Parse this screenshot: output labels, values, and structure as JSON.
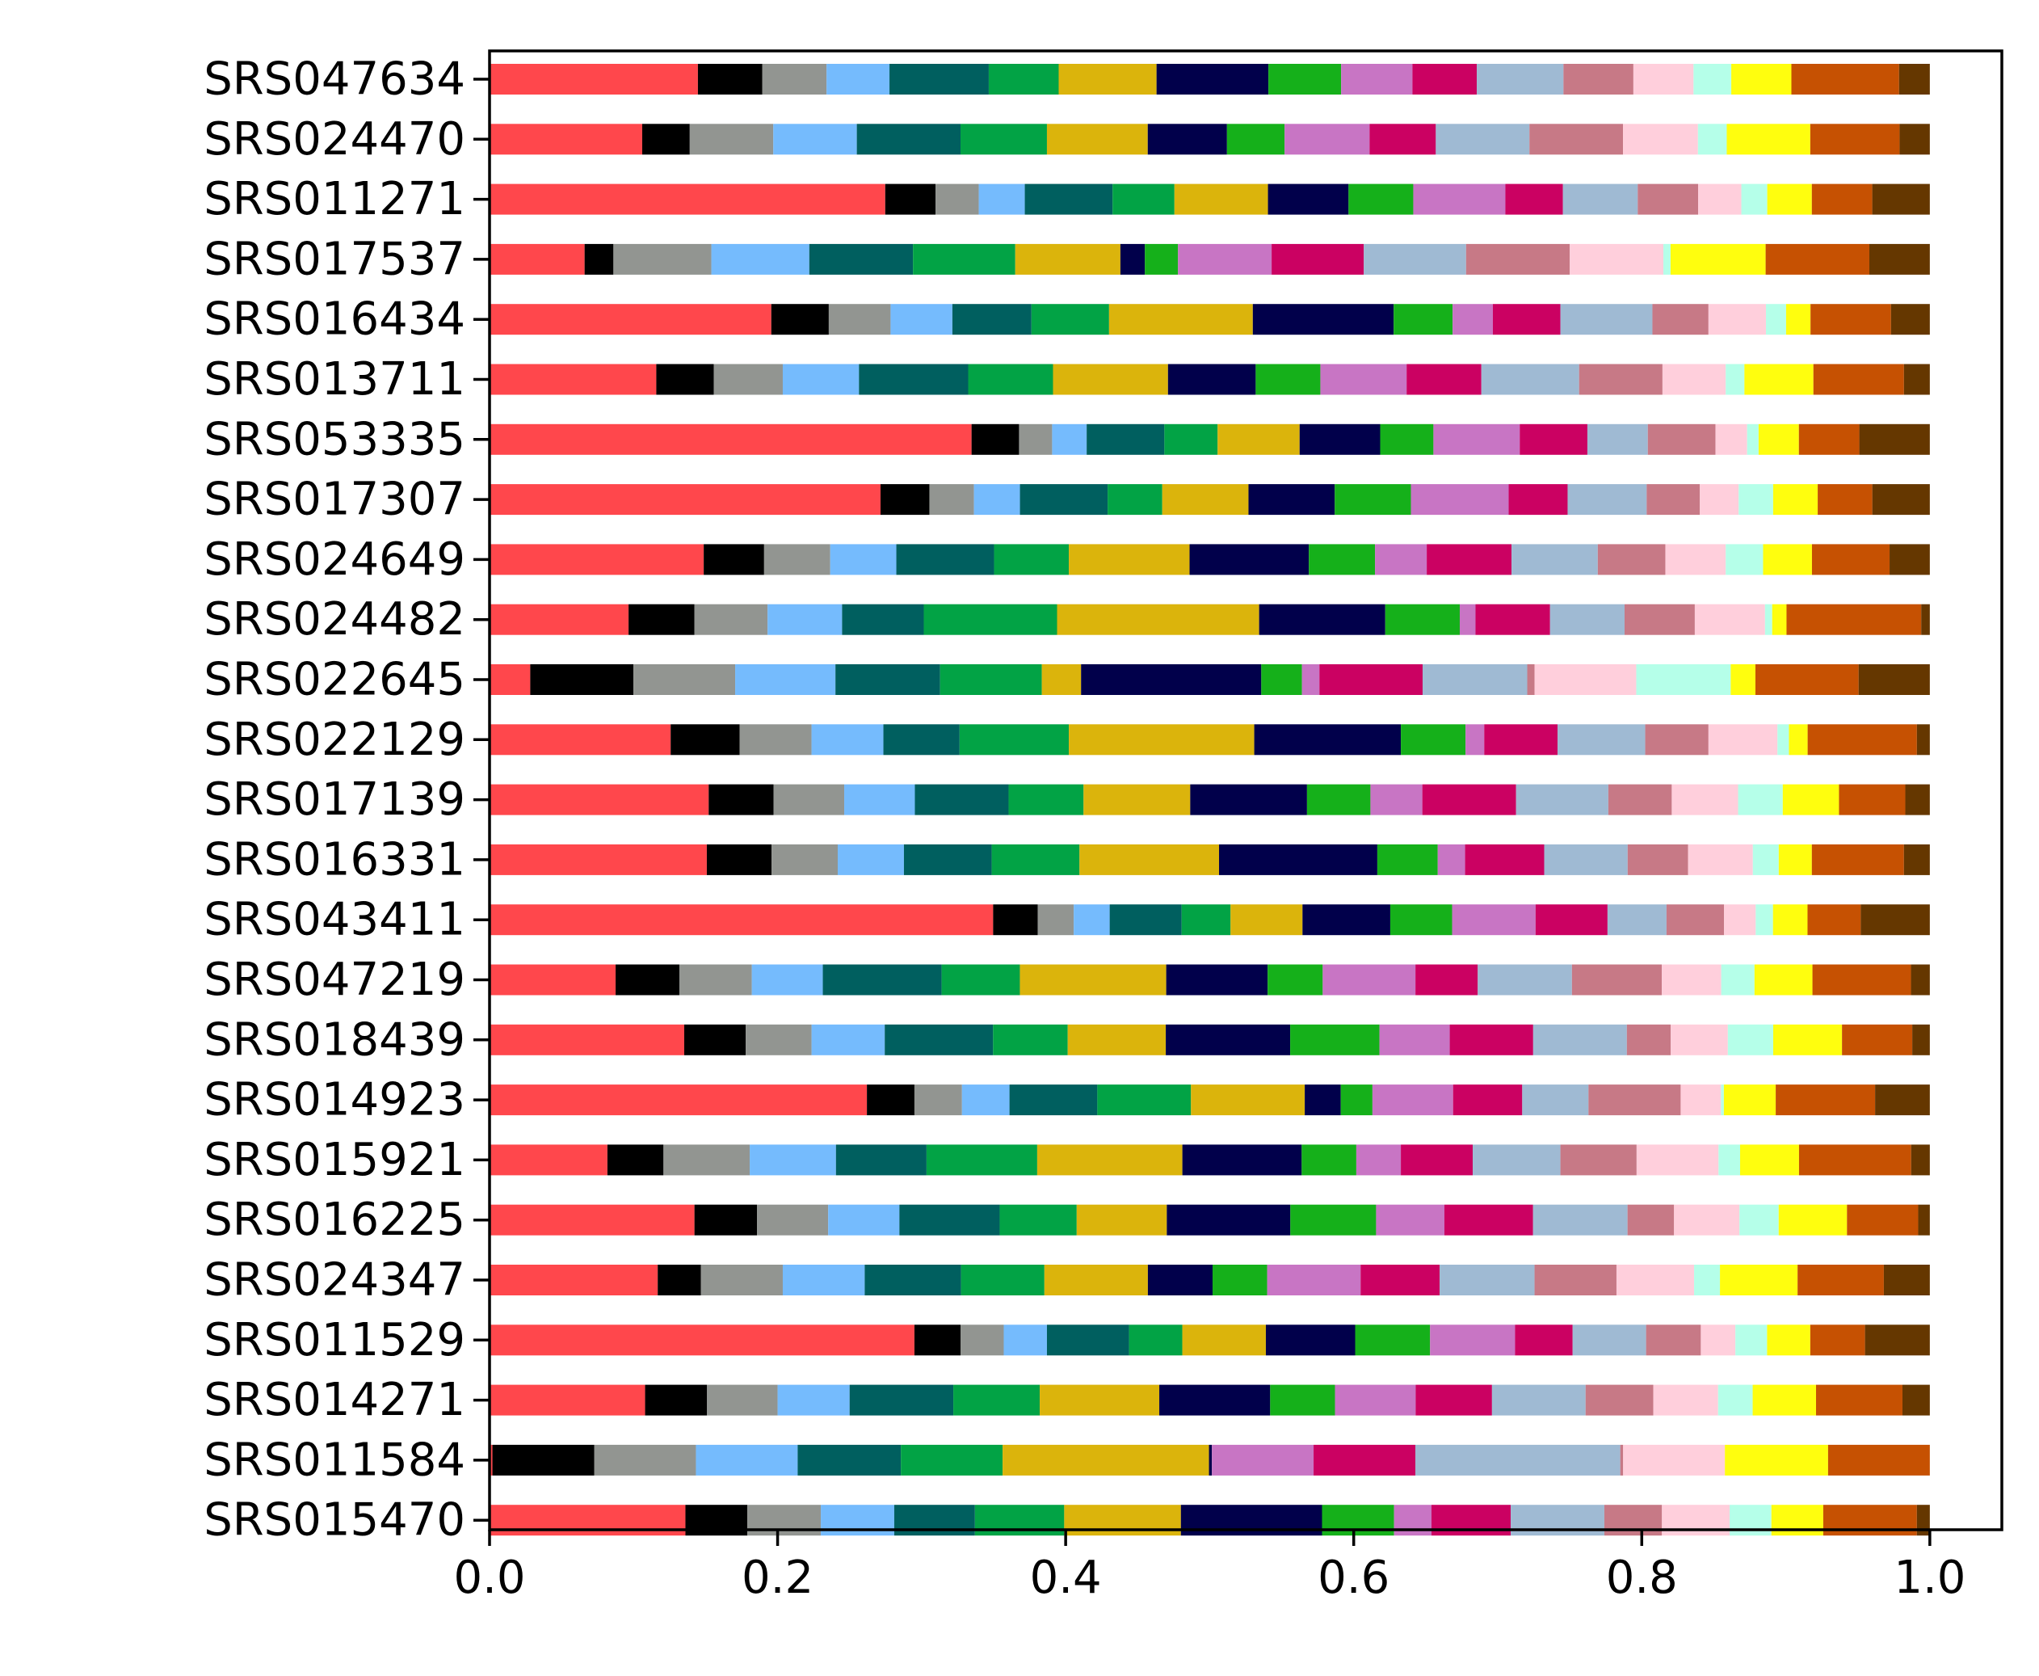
{
  "chart_data": {
    "type": "bar",
    "orientation": "horizontal",
    "stacked": true,
    "title": "",
    "xlabel": "",
    "ylabel": "",
    "xlim": [
      0.0,
      1.05
    ],
    "xticks": [
      0.0,
      0.2,
      0.4,
      0.6,
      0.8,
      1.0
    ],
    "xtick_labels": [
      "0.0",
      "0.2",
      "0.4",
      "0.6",
      "0.8",
      "1.0"
    ],
    "grid": false,
    "legend": "none",
    "colors": [
      "#ff474c",
      "#000000",
      "#929591",
      "#75bbfd",
      "#005f5f",
      "#02a345",
      "#dbb40c",
      "#01004b",
      "#15b01a",
      "#c875c4",
      "#cb0162",
      "#9fbad3",
      "#c77986",
      "#ffcfdc",
      "#b5ffe9",
      "#fffe0e",
      "#c65102",
      "#653700"
    ],
    "categories": [
      "SRS047634",
      "SRS024470",
      "SRS011271",
      "SRS017537",
      "SRS016434",
      "SRS013711",
      "SRS053335",
      "SRS017307",
      "SRS024649",
      "SRS024482",
      "SRS022645",
      "SRS022129",
      "SRS017139",
      "SRS016331",
      "SRS043411",
      "SRS047219",
      "SRS018439",
      "SRS014923",
      "SRS015921",
      "SRS016225",
      "SRS024347",
      "SRS011529",
      "SRS014271",
      "SRS011584",
      "SRS015470"
    ],
    "values": [
      [
        0.149,
        0.046,
        0.046,
        0.045,
        0.071,
        0.05,
        0.07,
        0.08,
        0.052,
        0.051,
        0.046,
        0.062,
        0.05,
        0.043,
        0.027,
        0.043,
        0.077,
        0.022
      ],
      [
        0.106,
        0.033,
        0.058,
        0.058,
        0.072,
        0.06,
        0.07,
        0.055,
        0.04,
        0.059,
        0.046,
        0.065,
        0.065,
        0.052,
        0.02,
        0.058,
        0.062,
        0.021
      ],
      [
        0.275,
        0.035,
        0.03,
        0.032,
        0.061,
        0.043,
        0.065,
        0.056,
        0.045,
        0.064,
        0.04,
        0.052,
        0.042,
        0.03,
        0.018,
        0.031,
        0.042,
        0.04
      ],
      [
        0.066,
        0.02,
        0.068,
        0.068,
        0.072,
        0.071,
        0.073,
        0.017,
        0.023,
        0.065,
        0.064,
        0.071,
        0.072,
        0.065,
        0.005,
        0.066,
        0.072,
        0.042
      ],
      [
        0.196,
        0.04,
        0.043,
        0.043,
        0.055,
        0.054,
        0.1,
        0.098,
        0.041,
        0.028,
        0.047,
        0.064,
        0.039,
        0.04,
        0.014,
        0.017,
        0.056,
        0.027
      ],
      [
        0.116,
        0.04,
        0.048,
        0.053,
        0.076,
        0.059,
        0.08,
        0.061,
        0.045,
        0.06,
        0.052,
        0.068,
        0.058,
        0.044,
        0.013,
        0.048,
        0.063,
        0.018
      ],
      [
        0.335,
        0.033,
        0.023,
        0.024,
        0.054,
        0.037,
        0.057,
        0.056,
        0.037,
        0.06,
        0.047,
        0.042,
        0.047,
        0.022,
        0.008,
        0.028,
        0.042,
        0.049
      ],
      [
        0.272,
        0.034,
        0.031,
        0.032,
        0.061,
        0.038,
        0.06,
        0.06,
        0.053,
        0.068,
        0.041,
        0.055,
        0.037,
        0.027,
        0.024,
        0.031,
        0.038,
        0.04
      ],
      [
        0.149,
        0.042,
        0.046,
        0.046,
        0.068,
        0.052,
        0.084,
        0.083,
        0.046,
        0.036,
        0.059,
        0.06,
        0.047,
        0.042,
        0.026,
        0.034,
        0.054,
        0.028
      ],
      [
        0.097,
        0.046,
        0.051,
        0.052,
        0.057,
        0.093,
        0.141,
        0.088,
        0.052,
        0.011,
        0.052,
        0.052,
        0.049,
        0.049,
        0.005,
        0.01,
        0.094,
        0.006
      ],
      [
        0.028,
        0.071,
        0.07,
        0.069,
        0.072,
        0.07,
        0.027,
        0.124,
        0.028,
        0.012,
        0.071,
        0.072,
        0.005,
        0.07,
        0.065,
        0.017,
        0.071,
        0.049
      ],
      [
        0.126,
        0.048,
        0.05,
        0.05,
        0.053,
        0.076,
        0.129,
        0.102,
        0.045,
        0.013,
        0.051,
        0.061,
        0.044,
        0.048,
        0.008,
        0.013,
        0.076,
        0.009
      ],
      [
        0.152,
        0.045,
        0.049,
        0.049,
        0.065,
        0.052,
        0.074,
        0.081,
        0.044,
        0.036,
        0.065,
        0.064,
        0.044,
        0.046,
        0.031,
        0.039,
        0.046,
        0.017
      ],
      [
        0.151,
        0.045,
        0.046,
        0.046,
        0.061,
        0.061,
        0.097,
        0.11,
        0.042,
        0.019,
        0.055,
        0.058,
        0.042,
        0.045,
        0.018,
        0.023,
        0.064,
        0.018
      ],
      [
        0.35,
        0.031,
        0.025,
        0.025,
        0.05,
        0.034,
        0.05,
        0.061,
        0.043,
        0.058,
        0.05,
        0.041,
        0.04,
        0.022,
        0.012,
        0.024,
        0.037,
        0.048
      ],
      [
        0.087,
        0.044,
        0.05,
        0.049,
        0.082,
        0.054,
        0.101,
        0.07,
        0.038,
        0.064,
        0.043,
        0.065,
        0.062,
        0.041,
        0.023,
        0.04,
        0.068,
        0.013
      ],
      [
        0.133,
        0.042,
        0.045,
        0.05,
        0.074,
        0.051,
        0.067,
        0.085,
        0.061,
        0.048,
        0.057,
        0.064,
        0.03,
        0.039,
        0.031,
        0.047,
        0.048,
        0.012
      ],
      [
        0.262,
        0.033,
        0.033,
        0.033,
        0.061,
        0.065,
        0.079,
        0.025,
        0.022,
        0.056,
        0.048,
        0.046,
        0.064,
        0.028,
        0.002,
        0.036,
        0.069,
        0.038
      ],
      [
        0.082,
        0.039,
        0.06,
        0.06,
        0.063,
        0.077,
        0.101,
        0.083,
        0.038,
        0.031,
        0.05,
        0.061,
        0.053,
        0.057,
        0.015,
        0.041,
        0.078,
        0.013
      ],
      [
        0.141,
        0.043,
        0.049,
        0.049,
        0.069,
        0.053,
        0.062,
        0.085,
        0.059,
        0.047,
        0.061,
        0.065,
        0.032,
        0.045,
        0.027,
        0.047,
        0.049,
        0.008
      ],
      [
        0.117,
        0.03,
        0.057,
        0.057,
        0.067,
        0.058,
        0.072,
        0.045,
        0.038,
        0.065,
        0.055,
        0.066,
        0.057,
        0.054,
        0.018,
        0.054,
        0.06,
        0.032
      ],
      [
        0.295,
        0.032,
        0.03,
        0.03,
        0.057,
        0.037,
        0.058,
        0.062,
        0.052,
        0.059,
        0.04,
        0.051,
        0.038,
        0.024,
        0.022,
        0.03,
        0.038,
        0.045
      ],
      [
        0.108,
        0.043,
        0.049,
        0.05,
        0.072,
        0.06,
        0.083,
        0.077,
        0.045,
        0.056,
        0.053,
        0.065,
        0.047,
        0.045,
        0.024,
        0.044,
        0.06,
        0.019
      ],
      [
        0.002,
        0.071,
        0.071,
        0.071,
        0.072,
        0.071,
        0.144,
        0.002,
        0.0,
        0.071,
        0.071,
        0.143,
        0.002,
        0.071,
        0.0,
        0.072,
        0.071,
        0.0
      ],
      [
        0.136,
        0.043,
        0.051,
        0.051,
        0.056,
        0.062,
        0.081,
        0.098,
        0.05,
        0.026,
        0.055,
        0.065,
        0.04,
        0.047,
        0.029,
        0.036,
        0.065,
        0.009
      ]
    ]
  }
}
